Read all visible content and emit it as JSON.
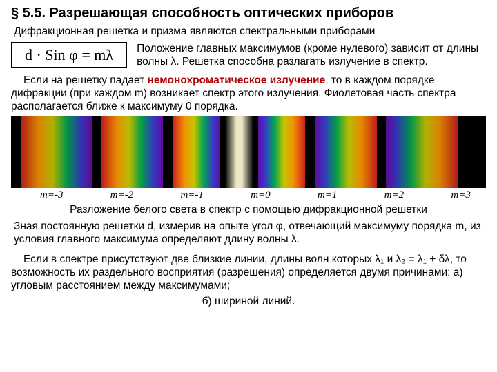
{
  "title": "§ 5.5. Разрешающая способность оптических приборов",
  "subtitle": "Дифракционная решетка и призма  являются спектральными приборами",
  "formula_html": "d · Sin φ = mλ",
  "formula_side": "Положение главных максимумов (кроме нулевого) зависит от длины волны λ. Решетка способна разлагать излучение в спектр.",
  "para1_pre": "Если на решетку падает ",
  "para1_red": "немонохроматическое излучение",
  "para1_post": ", то в каждом порядке дифракции (при каждом m) возникает спектр этого излучения. Фиолетовая часть спектра располагается ближе к максимуму 0 порядка.",
  "spectrum_config": {
    "background": "#000000",
    "bands": [
      {
        "type": "gap",
        "width": 2
      },
      {
        "type": "spec",
        "width": 15,
        "reverse": true,
        "sat": 0.85
      },
      {
        "type": "gap",
        "width": 2
      },
      {
        "type": "spec",
        "width": 13,
        "reverse": true,
        "sat": 0.9
      },
      {
        "type": "gap",
        "width": 2
      },
      {
        "type": "spec",
        "width": 10,
        "reverse": true,
        "sat": 0.95
      },
      {
        "type": "gap",
        "width": 1
      },
      {
        "type": "center",
        "width": 6
      },
      {
        "type": "gap",
        "width": 1
      },
      {
        "type": "spec",
        "width": 10,
        "reverse": false,
        "sat": 0.95
      },
      {
        "type": "gap",
        "width": 2
      },
      {
        "type": "spec",
        "width": 13,
        "reverse": false,
        "sat": 0.9
      },
      {
        "type": "gap",
        "width": 2
      },
      {
        "type": "spec",
        "width": 15,
        "reverse": false,
        "sat": 0.85
      },
      {
        "type": "gap",
        "width": 2
      }
    ]
  },
  "order_labels": [
    "m=-3",
    "m=-2",
    "m=-1",
    "m=0",
    "m=1",
    "m=2",
    "m=3"
  ],
  "caption": "Разложение белого света в спектр с помощью дифракционной решетки",
  "para2": "Зная постоянную решетки d, измерив на опыте угол φ, отвечающий максимуму порядка m, из условия главного максимума определяют длину волны λ.",
  "para3": "Если в спектре присутствуют две близкие линии, длины волн которых λ₁ и λ₂ = λ₁ + δλ, то возможность их раздельного восприятия (разрешения) определяется двумя причинами: а) угловым расстоянием между максимумами;",
  "para3b": "б) шириной линий.",
  "colors": {
    "text": "#000000",
    "red": "#b00000",
    "bg": "#ffffff"
  },
  "fonts": {
    "body_size_pt": 12,
    "title_size_pt": 15,
    "formula_size_pt": 17
  }
}
